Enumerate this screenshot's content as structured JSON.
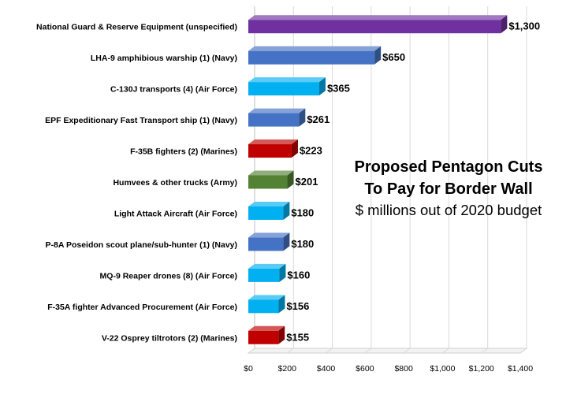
{
  "chart_data": {
    "type": "bar",
    "orientation": "horizontal",
    "title": "Proposed Pentagon Cuts To Pay for Border Wall",
    "title_lines": [
      "Proposed Pentagon Cuts",
      "To Pay for Border Wall"
    ],
    "subtitle": "$ millions out of 2020 budget",
    "categories": [
      "National Guard & Reserve Equipment (unspecified)",
      "LHA-9 amphibious warship (1) (Navy)",
      "C-130J transports (4) (Air Force)",
      "EPF Expeditionary Fast Transport ship (1) (Navy)",
      "F-35B fighters (2) (Marines)",
      "Humvees & other trucks (Army)",
      "Light Attack Aircraft (Air Force)",
      "P-8A Poseidon scout plane/sub-hunter (1) (Navy)",
      "MQ-9 Reaper drones (8) (Air Force)",
      "F-35A fighter Advanced Procurement (Air Force)",
      "V-22 Osprey tiltrotors (2) (Marines)"
    ],
    "values": [
      1300,
      650,
      365,
      261,
      223,
      201,
      180,
      180,
      160,
      156,
      155
    ],
    "value_labels": [
      "$1,300",
      "$650",
      "$365",
      "$261",
      "$223",
      "$201",
      "$180",
      "$180",
      "$160",
      "$156",
      "$155"
    ],
    "colors": [
      "#7030A0",
      "#4472C4",
      "#00B0F0",
      "#4472C4",
      "#C00000",
      "#548235",
      "#00B0F0",
      "#4472C4",
      "#00B0F0",
      "#00B0F0",
      "#C00000"
    ],
    "xlim": [
      0,
      1400
    ],
    "xticks": [
      0,
      200,
      400,
      600,
      800,
      1000,
      1200,
      1400
    ],
    "xtick_labels": [
      "$0",
      "$200",
      "$400",
      "$600",
      "$800",
      "$1,000",
      "$1,200",
      "$1,400"
    ],
    "grid": true,
    "bar_style": "3d"
  }
}
